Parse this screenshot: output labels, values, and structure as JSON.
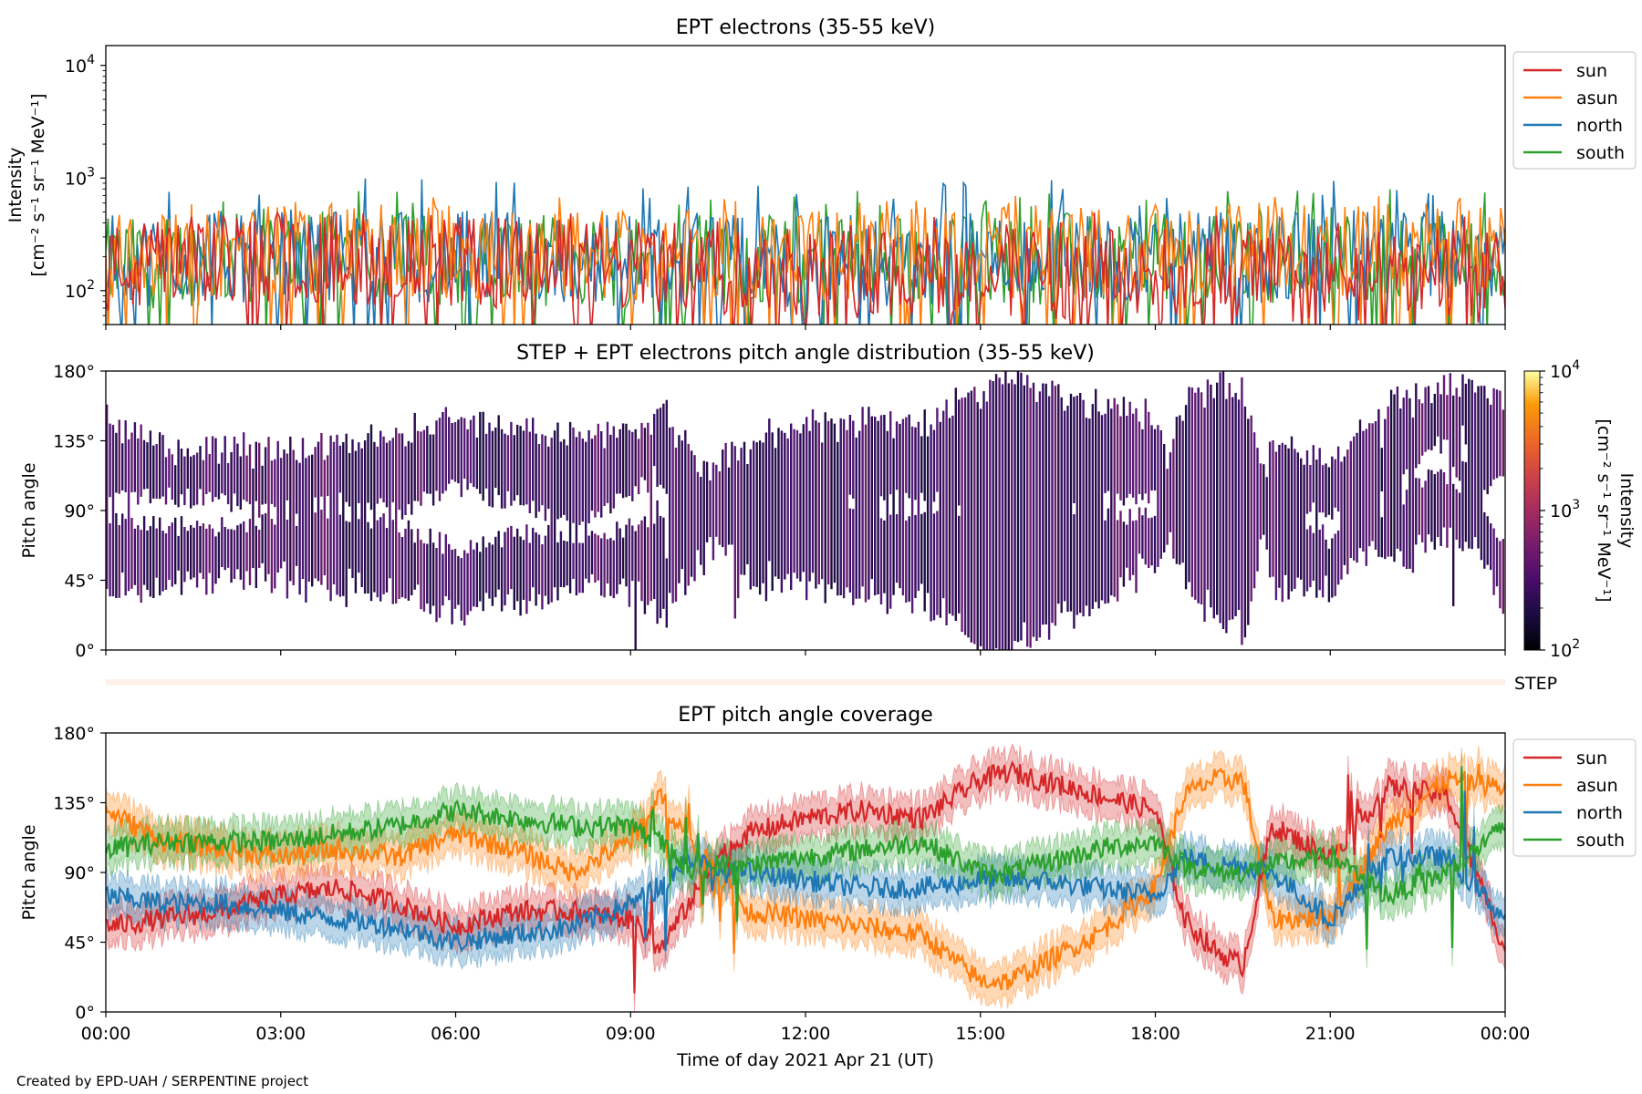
{
  "figure": {
    "credit": "Created by EPD-UAH / SERPENTINE project",
    "xlabel": "Time of day 2021 Apr 21 (UT)",
    "xticks": [
      "00:00",
      "03:00",
      "06:00",
      "09:00",
      "12:00",
      "15:00",
      "18:00",
      "21:00",
      "00:00"
    ]
  },
  "chart_data": [
    {
      "type": "line",
      "title": "EPT electrons (35-55 keV)",
      "ylabel_line1": "Intensity",
      "ylabel_line2": "[cm⁻² s⁻¹ sr⁻¹ MeV⁻¹]",
      "yscale": "log",
      "ylim": [
        50,
        15000
      ],
      "yticks": [
        {
          "value": 100,
          "base": "10",
          "exp": "2"
        },
        {
          "value": 1000,
          "base": "10",
          "exp": "3"
        },
        {
          "value": 10000,
          "base": "10",
          "exp": "4"
        }
      ],
      "xlim_hours": [
        0,
        24
      ],
      "legend_position": "outside-right-top",
      "series": [
        {
          "name": "sun",
          "color": "#d62728",
          "typical": [
            150,
            200,
            180,
            160,
            150,
            140,
            140,
            130,
            130
          ],
          "spike_max": 500
        },
        {
          "name": "asun",
          "color": "#ff7f0e",
          "typical": [
            200,
            230,
            220,
            210,
            200,
            210,
            220,
            230,
            240
          ],
          "spike_max": 700
        },
        {
          "name": "north",
          "color": "#1f77b4",
          "typical": [
            180,
            210,
            200,
            190,
            180,
            190,
            200,
            200,
            210
          ],
          "spike_max": 1000
        },
        {
          "name": "south",
          "color": "#2ca02c",
          "typical": [
            170,
            200,
            190,
            180,
            180,
            190,
            190,
            200,
            200
          ],
          "spike_max": 800
        }
      ]
    },
    {
      "type": "heatmap",
      "title": "STEP + EPT electrons pitch angle distribution (35-55 keV)",
      "ylabel": "Pitch angle",
      "ylim": [
        0,
        180
      ],
      "yticks": [
        "0°",
        "45°",
        "90°",
        "135°",
        "180°"
      ],
      "colorbar": {
        "label_line1": "Intensity",
        "label_line2": "[cm⁻² s⁻¹ sr⁻¹ MeV⁻¹]",
        "scale": "log",
        "range": [
          100,
          10000
        ],
        "colormap": "inferno",
        "ticks": [
          {
            "value": 100,
            "base": "10",
            "exp": "2"
          },
          {
            "value": 1000,
            "base": "10",
            "exp": "3"
          },
          {
            "value": 10000,
            "base": "10",
            "exp": "4"
          }
        ]
      },
      "step_strip_label": "STEP"
    },
    {
      "type": "line",
      "title": "EPT pitch angle coverage",
      "ylabel": "Pitch angle",
      "ylim": [
        0,
        180
      ],
      "yticks": [
        "0°",
        "45°",
        "90°",
        "135°",
        "180°"
      ],
      "xlim_hours": [
        0,
        24
      ],
      "shaded_band_width_deg": 12,
      "legend_position": "outside-right-top",
      "x_hours": [
        0,
        1,
        2,
        3,
        4,
        5,
        6,
        7,
        8,
        9,
        9.5,
        10,
        10.5,
        11,
        12,
        13,
        14,
        15,
        15.5,
        16,
        17,
        18,
        18.5,
        19,
        19.5,
        20,
        21,
        22,
        23,
        24
      ],
      "series": [
        {
          "name": "sun",
          "color": "#d62728",
          "values": [
            55,
            60,
            65,
            75,
            80,
            70,
            55,
            65,
            65,
            60,
            40,
            70,
            100,
            115,
            125,
            130,
            125,
            150,
            155,
            150,
            140,
            130,
            60,
            40,
            30,
            120,
            100,
            145,
            140,
            40
          ]
        },
        {
          "name": "asun",
          "color": "#ff7f0e",
          "values": [
            130,
            110,
            105,
            100,
            105,
            100,
            115,
            105,
            90,
            110,
            140,
            110,
            90,
            65,
            60,
            55,
            50,
            20,
            20,
            30,
            50,
            80,
            140,
            150,
            150,
            60,
            60,
            120,
            150,
            145
          ]
        },
        {
          "name": "north",
          "color": "#1f77b4",
          "values": [
            75,
            70,
            70,
            65,
            60,
            55,
            45,
            50,
            55,
            70,
            80,
            100,
            90,
            90,
            85,
            80,
            80,
            85,
            85,
            85,
            80,
            75,
            100,
            95,
            95,
            90,
            60,
            100,
            100,
            60
          ]
        },
        {
          "name": "south",
          "color": "#2ca02c",
          "values": [
            105,
            110,
            110,
            110,
            115,
            120,
            130,
            125,
            120,
            120,
            110,
            90,
            95,
            95,
            100,
            105,
            110,
            90,
            90,
            95,
            105,
            110,
            95,
            90,
            90,
            95,
            100,
            75,
            90,
            120
          ]
        }
      ]
    }
  ]
}
